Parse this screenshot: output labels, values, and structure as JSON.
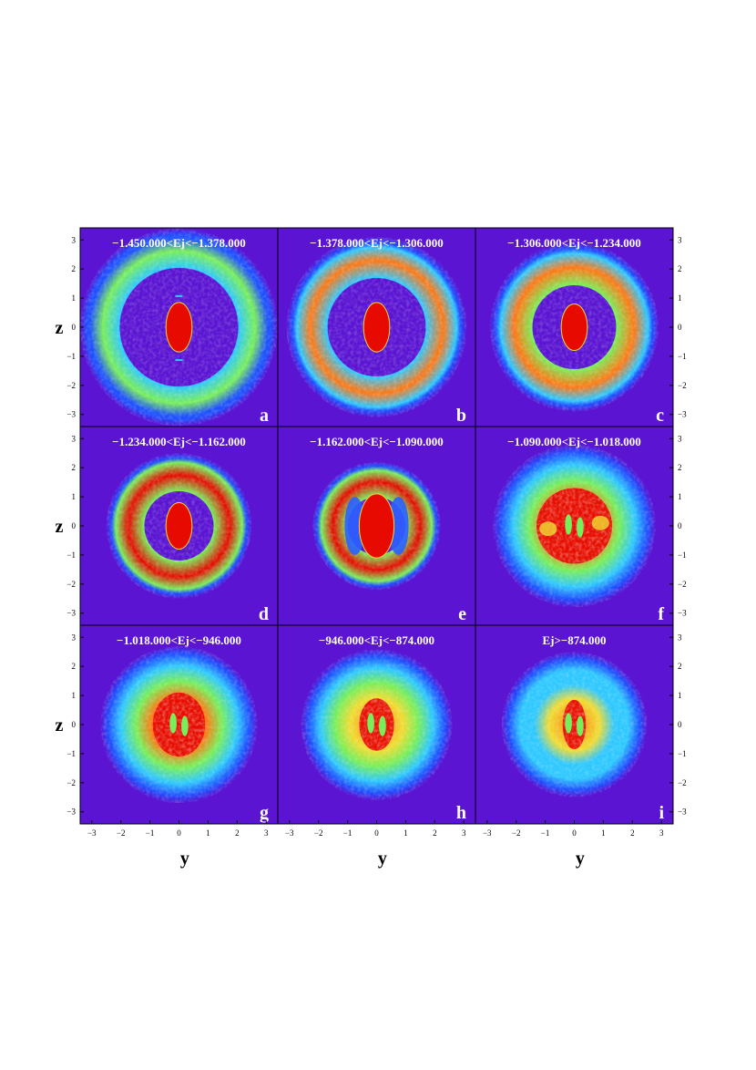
{
  "chart_data": {
    "type": "heatmap",
    "xlabel": "y",
    "ylabel": "z",
    "xlim": [
      -3.4,
      3.4
    ],
    "ylim": [
      -3.4,
      3.4
    ],
    "xticks": [
      "-3",
      "-2",
      "-1",
      "0",
      "1",
      "2",
      "3"
    ],
    "yticks": [
      "3",
      "2",
      "1",
      "0",
      "-1",
      "-2",
      "-3"
    ],
    "colormap": [
      "#5a14d2",
      "#1e50ff",
      "#2ec8ff",
      "#78ee5a",
      "#f0dc32",
      "#ff7814",
      "#e60a00"
    ],
    "panels": [
      {
        "letter": "a",
        "title": "−1.450.000<Ej<−1.378.000",
        "ring_inner": 2.05,
        "ring_outer": 3.4,
        "ring_peak": 0.55,
        "core_ry": 0.85,
        "core_rx": 0.45,
        "pattern": "core"
      },
      {
        "letter": "b",
        "title": "−1.378.000<Ej<−1.306.000",
        "ring_inner": 1.7,
        "ring_outer": 3.1,
        "ring_peak": 0.75,
        "core_ry": 0.85,
        "core_rx": 0.45,
        "pattern": "core"
      },
      {
        "letter": "c",
        "title": "−1.306.000<Ej<−1.234.000",
        "ring_inner": 1.45,
        "ring_outer": 2.9,
        "ring_peak": 0.9,
        "core_ry": 0.8,
        "core_rx": 0.45,
        "pattern": "core"
      },
      {
        "letter": "d",
        "title": "−1.234.000<Ej<−1.162.000",
        "ring_inner": 1.2,
        "ring_outer": 2.5,
        "ring_peak": 0.95,
        "core_ry": 0.8,
        "core_rx": 0.45,
        "pattern": "core"
      },
      {
        "letter": "e",
        "title": "−1.162.000<Ej<−1.090.000",
        "ring_inner": 1.0,
        "ring_outer": 2.2,
        "ring_peak": 0.95,
        "core_ry": 1.1,
        "core_rx": 0.6,
        "pattern": "core"
      },
      {
        "letter": "f",
        "title": "−1.090.000<Ej<−1.018.000",
        "ring_inner": 0.0,
        "ring_outer": 2.8,
        "ring_peak": 1.0,
        "core_ry": 1.3,
        "core_rx": 1.3,
        "pattern": "blob"
      },
      {
        "letter": "g",
        "title": "−1.018.000<Ej<−946.000",
        "ring_inner": 0.0,
        "ring_outer": 2.7,
        "ring_peak": 0.95,
        "core_ry": 1.1,
        "core_rx": 0.9,
        "pattern": "blob"
      },
      {
        "letter": "h",
        "title": "−946.000<Ej<−874.000",
        "ring_inner": 0.0,
        "ring_outer": 2.6,
        "ring_peak": 0.8,
        "core_ry": 0.9,
        "core_rx": 0.6,
        "pattern": "blob"
      },
      {
        "letter": "i",
        "title": "Ej>−874.000",
        "ring_inner": 0.0,
        "ring_outer": 2.5,
        "ring_peak": 0.75,
        "core_ry": 0.85,
        "core_rx": 0.4,
        "pattern": "blob"
      }
    ]
  }
}
